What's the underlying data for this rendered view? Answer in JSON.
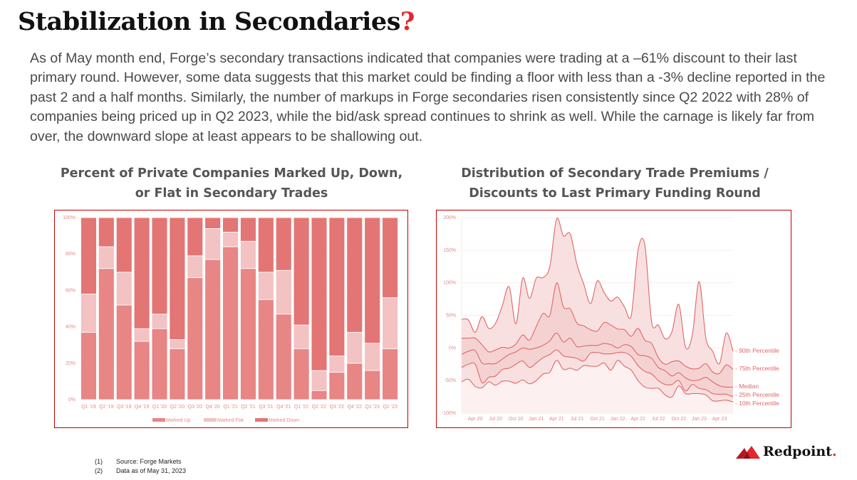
{
  "header": {
    "title": "Stabilization in Secondaries",
    "title_mark": "?",
    "intro": "As of May month end, Forge’s secondary transactions indicated that companies were trading at a –61% discount to their last primary round. However, some data suggests that this market could be finding a floor with less than a -3% decline reported in the past 2 and a half months. Similarly, the number of markups in Forge secondaries risen consistently since Q2 2022 with 28% of companies being priced up in Q2 2023, while the bid/ask spread continues to shrink as well. While the carnage is likely far from over, the downward slope at least appears to be shallowing out."
  },
  "chart_data": [
    {
      "type": "bar",
      "stacked": true,
      "title_line1": "Percent of Private Companies Marked Up, Down,",
      "title_line2": "or Flat in Secondary Trades",
      "categories": [
        "Q1 '19",
        "Q2 '19",
        "Q3 '19",
        "Q4 '19",
        "Q1 '20",
        "Q2 '20",
        "Q3 '20",
        "Q4 '20",
        "Q1 '21",
        "Q2 '21",
        "Q3 '21",
        "Q4 '21",
        "Q1 '22",
        "Q2 '22",
        "Q3 '22",
        "Q4 '22",
        "Q1 '23",
        "Q2 '23"
      ],
      "series": [
        {
          "name": "Marked Up",
          "color": "#e88585",
          "values": [
            37,
            72,
            52,
            32,
            39,
            28,
            67,
            77,
            84,
            72,
            55,
            47,
            28,
            5,
            15,
            20,
            16,
            28
          ]
        },
        {
          "name": "Marked Flat",
          "color": "#f3c2c2",
          "values": [
            21,
            12,
            18,
            7,
            8,
            5,
            12,
            17,
            8,
            15,
            15,
            24,
            13,
            11,
            9,
            17,
            15,
            28
          ]
        },
        {
          "name": "Marked Down",
          "color": "#e37575",
          "values": [
            42,
            16,
            30,
            61,
            53,
            67,
            21,
            6,
            8,
            13,
            30,
            29,
            59,
            84,
            76,
            63,
            69,
            44
          ]
        }
      ],
      "yticks": [
        "0%",
        "20%",
        "40%",
        "60%",
        "80%",
        "100%"
      ],
      "ylim": [
        0,
        100
      ],
      "legend": "bottom"
    },
    {
      "type": "line",
      "title_line1": "Distribution of Secondary Trade Premiums /",
      "title_line2": "Discounts to Last Primary Funding Round",
      "x_months_from_feb_2020": [
        0,
        1,
        2,
        3,
        4,
        5,
        6,
        7,
        8,
        9,
        10,
        11,
        12,
        13,
        14,
        15,
        16,
        17,
        18,
        19,
        20,
        21,
        22,
        23,
        24,
        25,
        26,
        27,
        28,
        29,
        30,
        31,
        32,
        33,
        34,
        35,
        36,
        37,
        38,
        39,
        40
      ],
      "xticks": [
        {
          "label": "Apr 20",
          "m": 2
        },
        {
          "label": "Jul 20",
          "m": 5
        },
        {
          "label": "Oct 20",
          "m": 8
        },
        {
          "label": "Jan 21",
          "m": 11
        },
        {
          "label": "Apr 21",
          "m": 14
        },
        {
          "label": "Jul 21",
          "m": 17
        },
        {
          "label": "Oct 21",
          "m": 20
        },
        {
          "label": "Jan 22",
          "m": 23
        },
        {
          "label": "Apr 22",
          "m": 26
        },
        {
          "label": "Jul 22",
          "m": 29
        },
        {
          "label": "Oct 22",
          "m": 32
        },
        {
          "label": "Jan 23",
          "m": 35
        },
        {
          "label": "Apr 23",
          "m": 38
        }
      ],
      "yticks": [
        {
          "label": "200%",
          "v": 200
        },
        {
          "label": "150%",
          "v": 150
        },
        {
          "label": "100%",
          "v": 100
        },
        {
          "label": "50%",
          "v": 50
        },
        {
          "label": "0%",
          "v": 0
        },
        {
          "label": "-50%",
          "v": -50
        },
        {
          "label": "-100%",
          "v": -100
        }
      ],
      "ylim": [
        -100,
        200
      ],
      "series": [
        {
          "name": "90th Percentile",
          "values": [
            44,
            43,
            24,
            48,
            30,
            38,
            65,
            94,
            37,
            107,
            76,
            107,
            108,
            125,
            198,
            172,
            175,
            128,
            98,
            68,
            103,
            85,
            72,
            78,
            63,
            50,
            150,
            158,
            40,
            35,
            14,
            25,
            67,
            1,
            20,
            102,
            15,
            -5,
            -24,
            23,
            -5
          ]
        },
        {
          "name": "75th Percentile",
          "values": [
            15,
            15,
            15,
            5,
            -6,
            -3,
            1,
            0,
            6,
            20,
            12,
            33,
            53,
            50,
            100,
            63,
            60,
            38,
            34,
            28,
            26,
            39,
            35,
            29,
            28,
            18,
            30,
            12,
            7,
            -15,
            -25,
            -21,
            -20,
            -28,
            -32,
            -31,
            -24,
            -37,
            -39,
            -26,
            -33
          ]
        },
        {
          "name": "Median",
          "values": [
            -10,
            -5,
            -4,
            -23,
            -24,
            -24,
            -17,
            -10,
            -6,
            0,
            -2,
            0,
            4,
            11,
            23,
            9,
            15,
            2,
            3,
            4,
            4,
            7,
            5,
            0,
            5,
            2,
            -10,
            -12,
            -16,
            -30,
            -35,
            -43,
            -38,
            -46,
            -50,
            -49,
            -45,
            -52,
            -58,
            -60,
            -60
          ]
        },
        {
          "name": "25th Percentile",
          "values": [
            -30,
            -25,
            -25,
            -53,
            -45,
            -43,
            -33,
            -31,
            -25,
            -20,
            -30,
            -23,
            -15,
            -10,
            -3,
            -12,
            -14,
            -16,
            -20,
            -8,
            -7,
            -9,
            -9,
            -7,
            -7,
            -13,
            -27,
            -36,
            -40,
            -50,
            -56,
            -56,
            -50,
            -66,
            -56,
            -62,
            -64,
            -70,
            -71,
            -71,
            -75
          ]
        },
        {
          "name": "10th Percentile",
          "values": [
            -52,
            -48,
            -59,
            -61,
            -52,
            -57,
            -51,
            -51,
            -54,
            -49,
            -55,
            -50,
            -40,
            -37,
            -19,
            -33,
            -31,
            -34,
            -27,
            -28,
            -28,
            -23,
            -34,
            -19,
            -28,
            -34,
            -50,
            -60,
            -62,
            -62,
            -72,
            -75,
            -58,
            -70,
            -70,
            -70,
            -72,
            -81,
            -81,
            -80,
            -83
          ]
        }
      ],
      "series_labels": [
        "- 90th Percentile",
        "- 75th Percentile",
        "- Median",
        "- 25th Percentile",
        "- 10th Percentile"
      ],
      "line_color": "#e06666"
    }
  ],
  "footer": {
    "notes": [
      {
        "num": "(1)",
        "text": "Source: Forge Markets"
      },
      {
        "num": "(2)",
        "text": "Data as of May 31, 2023"
      }
    ],
    "logo_text": "Redpoint",
    "logo_dot": "."
  }
}
